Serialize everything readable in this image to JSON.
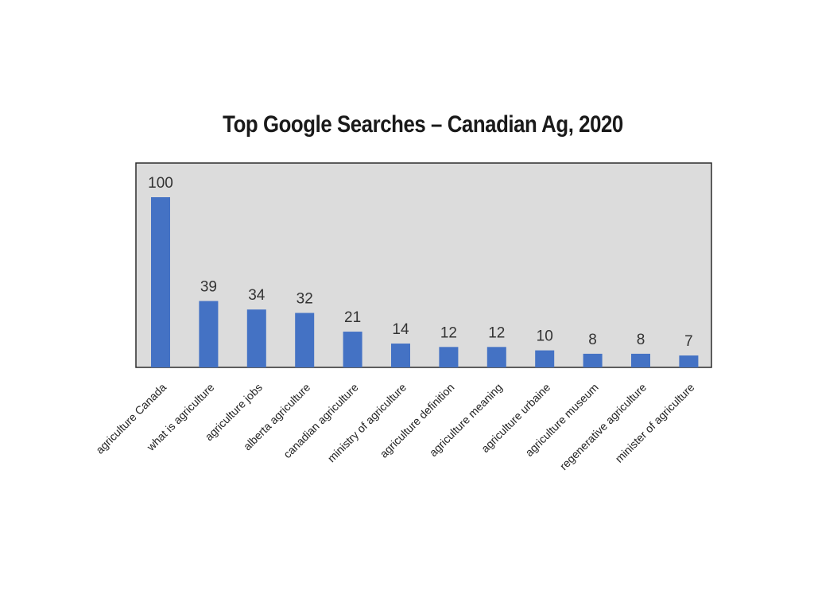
{
  "chart_data": {
    "type": "bar",
    "title": "Top Google Searches – Canadian Ag, 2020",
    "xlabel": "",
    "ylabel": "",
    "categories": [
      "agriculture Canada",
      "what is agriculture",
      "agriculture jobs",
      "alberta agriculture",
      "canadian agriculture",
      "ministry of agriculture",
      "agriculture definition",
      "agriculture meaning",
      "agriculture urbaine",
      "agriculture museum",
      "regenerative agriculture",
      "minister of agriculture"
    ],
    "values": [
      100,
      39,
      34,
      32,
      21,
      14,
      12,
      12,
      10,
      8,
      8,
      7
    ],
    "ylim": [
      0,
      100
    ],
    "grid": false,
    "legend": "none",
    "colors": {
      "bar": "#4472c4",
      "plot_background": "#dcdcdc",
      "plot_border": "#2b2b2b"
    }
  }
}
